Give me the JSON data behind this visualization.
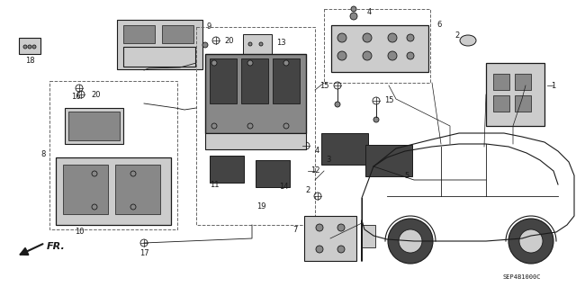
{
  "bg_color": "#ffffff",
  "fig_width": 6.4,
  "fig_height": 3.19,
  "dpi": 100,
  "line_color": "#1a1a1a",
  "part_code": "SEP4B1000C",
  "label_fontsize": 6.0,
  "gray_dark": "#444444",
  "gray_mid": "#888888",
  "gray_light": "#cccccc",
  "gray_fill": "#aaaaaa"
}
